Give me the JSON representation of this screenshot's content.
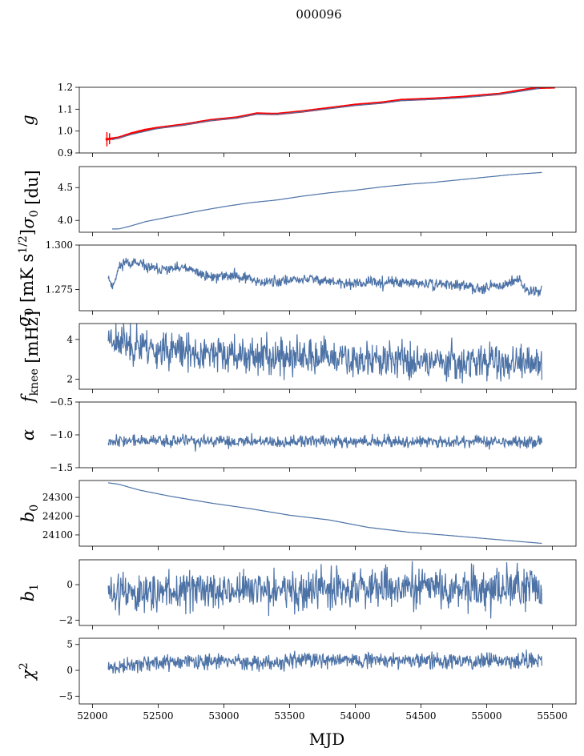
{
  "figure": {
    "title": "000096",
    "xlabel": "MJD"
  },
  "chart_data": [
    {
      "type": "line",
      "ylabel_base": "g",
      "ylabel_sub": "",
      "ylabel_sup": "",
      "xlim": [
        51900,
        55680
      ],
      "ylim": [
        0.9,
        1.2
      ],
      "yticks": [
        0.9,
        1.0,
        1.1,
        1.2
      ],
      "yticklabels": [
        "0.9",
        "1.0",
        "1.1",
        "1.2"
      ],
      "series": [
        {
          "color": "#ff0000",
          "kind": "smooth",
          "points": [
            [
              52100,
              0.962
            ],
            [
              52200,
              0.97
            ],
            [
              52300,
              0.99
            ],
            [
              52400,
              1.005
            ],
            [
              52500,
              1.015
            ],
            [
              52700,
              1.03
            ],
            [
              52900,
              1.05
            ],
            [
              53100,
              1.062
            ],
            [
              53250,
              1.08
            ],
            [
              53400,
              1.078
            ],
            [
              53600,
              1.09
            ],
            [
              53800,
              1.105
            ],
            [
              54000,
              1.12
            ],
            [
              54200,
              1.13
            ],
            [
              54350,
              1.142
            ],
            [
              54600,
              1.148
            ],
            [
              54800,
              1.155
            ],
            [
              55000,
              1.165
            ],
            [
              55100,
              1.17
            ],
            [
              55200,
              1.18
            ],
            [
              55300,
              1.19
            ],
            [
              55400,
              1.198
            ],
            [
              55520,
              1.2
            ]
          ],
          "spikes": [
            [
              52110,
              0.93,
              0.995
            ],
            [
              52130,
              0.94,
              0.99
            ]
          ]
        },
        {
          "color": "#4c72a6",
          "kind": "smooth",
          "points": [
            [
              52150,
              0.96
            ],
            [
              52300,
              0.985
            ],
            [
              52500,
              1.012
            ],
            [
              52700,
              1.028
            ],
            [
              52900,
              1.048
            ],
            [
              53100,
              1.06
            ],
            [
              53250,
              1.077
            ],
            [
              53400,
              1.076
            ],
            [
              53600,
              1.088
            ],
            [
              53800,
              1.102
            ],
            [
              54000,
              1.117
            ],
            [
              54200,
              1.127
            ],
            [
              54350,
              1.139
            ],
            [
              54600,
              1.145
            ],
            [
              54800,
              1.152
            ],
            [
              55000,
              1.162
            ],
            [
              55200,
              1.176
            ],
            [
              55400,
              1.195
            ]
          ]
        }
      ]
    },
    {
      "type": "line",
      "ylabel_base": "σ",
      "ylabel_sub": "0",
      "ylabel_sup": "",
      "ylabel_unit": "[du]",
      "xlim": [
        51900,
        55680
      ],
      "ylim": [
        3.82,
        4.82
      ],
      "yticks": [
        4.0,
        4.5
      ],
      "yticklabels": [
        "4.0",
        "4.5"
      ],
      "series": [
        {
          "color": "#4c72a6",
          "kind": "smooth",
          "points": [
            [
              52150,
              3.87
            ],
            [
              52200,
              3.87
            ],
            [
              52300,
              3.92
            ],
            [
              52400,
              3.98
            ],
            [
              52600,
              4.06
            ],
            [
              52800,
              4.14
            ],
            [
              53000,
              4.21
            ],
            [
              53200,
              4.27
            ],
            [
              53400,
              4.31
            ],
            [
              53600,
              4.37
            ],
            [
              53800,
              4.42
            ],
            [
              54000,
              4.46
            ],
            [
              54200,
              4.51
            ],
            [
              54400,
              4.55
            ],
            [
              54600,
              4.58
            ],
            [
              54800,
              4.62
            ],
            [
              55000,
              4.66
            ],
            [
              55200,
              4.7
            ],
            [
              55420,
              4.73
            ]
          ]
        }
      ]
    },
    {
      "type": "line",
      "ylabel_base": "σ",
      "ylabel_sub": "0",
      "ylabel_unit_pre": "[mK s",
      "ylabel_unit_sup": "1/2",
      "ylabel_unit_post": "]",
      "xlim": [
        51900,
        55680
      ],
      "ylim": [
        1.263,
        1.3
      ],
      "yticks": [
        1.275,
        1.3
      ],
      "yticklabels": [
        "1.275",
        "1.300"
      ],
      "series": [
        {
          "color": "#4c72a6",
          "kind": "noise",
          "seed": 11,
          "noise": 0.0015,
          "points": [
            [
              52120,
              1.283
            ],
            [
              52150,
              1.276
            ],
            [
              52200,
              1.287
            ],
            [
              52250,
              1.291
            ],
            [
              52350,
              1.289
            ],
            [
              52500,
              1.286
            ],
            [
              52700,
              1.287
            ],
            [
              52900,
              1.282
            ],
            [
              53100,
              1.283
            ],
            [
              53300,
              1.279
            ],
            [
              53500,
              1.28
            ],
            [
              53700,
              1.281
            ],
            [
              53900,
              1.278
            ],
            [
              54100,
              1.279
            ],
            [
              54300,
              1.279
            ],
            [
              54500,
              1.278
            ],
            [
              54700,
              1.278
            ],
            [
              54900,
              1.276
            ],
            [
              55100,
              1.277
            ],
            [
              55250,
              1.281
            ],
            [
              55300,
              1.274
            ],
            [
              55420,
              1.275
            ]
          ]
        }
      ]
    },
    {
      "type": "line",
      "ylabel_base": "f",
      "ylabel_sub": "knee",
      "ylabel_unit": "[mHz]",
      "xlim": [
        51900,
        55680
      ],
      "ylim": [
        1.5,
        4.8
      ],
      "yticks": [
        2,
        4
      ],
      "yticklabels": [
        "2",
        "4"
      ],
      "series": [
        {
          "color": "#4c72a6",
          "kind": "noise",
          "seed": 23,
          "noise": 0.45,
          "points": [
            [
              52120,
              4.2
            ],
            [
              52300,
              3.7
            ],
            [
              52600,
              3.4
            ],
            [
              53000,
              3.2
            ],
            [
              53500,
              3.1
            ],
            [
              54000,
              3.0
            ],
            [
              54500,
              2.95
            ],
            [
              55000,
              2.9
            ],
            [
              55420,
              2.7
            ]
          ]
        }
      ]
    },
    {
      "type": "line",
      "ylabel_base": "α",
      "ylabel_sub": "",
      "ylabel_unit": "",
      "xlim": [
        51900,
        55680
      ],
      "ylim": [
        -1.5,
        -0.5
      ],
      "yticks": [
        -1.5,
        -1.0,
        -0.5
      ],
      "yticklabels": [
        "−1.5",
        "−1.0",
        "−0.5"
      ],
      "series": [
        {
          "color": "#4c72a6",
          "kind": "noise",
          "seed": 37,
          "noise": 0.045,
          "points": [
            [
              52120,
              -1.08
            ],
            [
              52500,
              -1.1
            ],
            [
              53000,
              -1.1
            ],
            [
              53500,
              -1.1
            ],
            [
              54000,
              -1.1
            ],
            [
              54500,
              -1.1
            ],
            [
              55000,
              -1.1
            ],
            [
              55420,
              -1.12
            ]
          ]
        }
      ]
    },
    {
      "type": "line",
      "ylabel_base": "b",
      "ylabel_sub": "0",
      "ylabel_unit": "",
      "xlim": [
        51900,
        55680
      ],
      "ylim": [
        24040,
        24390
      ],
      "yticks": [
        24100,
        24200,
        24300
      ],
      "yticklabels": [
        "24100",
        "24200",
        "24300"
      ],
      "series": [
        {
          "color": "#4c72a6",
          "kind": "smooth",
          "points": [
            [
              52120,
              24378
            ],
            [
              52200,
              24370
            ],
            [
              52350,
              24340
            ],
            [
              52600,
              24305
            ],
            [
              52900,
              24270
            ],
            [
              53200,
              24240
            ],
            [
              53500,
              24205
            ],
            [
              53800,
              24180
            ],
            [
              54100,
              24140
            ],
            [
              54400,
              24115
            ],
            [
              54700,
              24098
            ],
            [
              55000,
              24080
            ],
            [
              55200,
              24068
            ],
            [
              55420,
              24055
            ]
          ]
        }
      ]
    },
    {
      "type": "line",
      "ylabel_base": "b",
      "ylabel_sub": "1",
      "ylabel_unit": "",
      "xlim": [
        51900,
        55680
      ],
      "ylim": [
        -2.3,
        1.4
      ],
      "yticks": [
        -2,
        0
      ],
      "yticklabels": [
        "−2",
        "0"
      ],
      "series": [
        {
          "color": "#4c72a6",
          "kind": "noise",
          "seed": 51,
          "noise": 0.55,
          "points": [
            [
              52120,
              -0.5
            ],
            [
              52600,
              -0.4
            ],
            [
              53200,
              -0.35
            ],
            [
              53800,
              -0.3
            ],
            [
              54400,
              -0.2
            ],
            [
              55000,
              -0.25
            ],
            [
              55420,
              -0.3
            ]
          ]
        }
      ]
    },
    {
      "type": "line",
      "ylabel_base": "χ",
      "ylabel_sub": "",
      "ylabel_sup": "2",
      "ylabel_unit": "",
      "xlim": [
        51900,
        55680
      ],
      "ylim": [
        -6.5,
        6.2
      ],
      "yticks": [
        -5,
        0,
        5
      ],
      "yticklabels": [
        "−5",
        "0",
        "5"
      ],
      "series": [
        {
          "color": "#4c72a6",
          "kind": "noise",
          "seed": 71,
          "noise": 0.75,
          "points": [
            [
              52120,
              0.3
            ],
            [
              52400,
              1.4
            ],
            [
              52800,
              1.6
            ],
            [
              53200,
              1.6
            ],
            [
              53600,
              1.9
            ],
            [
              54000,
              2.0
            ],
            [
              54400,
              1.8
            ],
            [
              54800,
              1.9
            ],
            [
              55200,
              1.9
            ],
            [
              55420,
              2.2
            ]
          ]
        }
      ]
    }
  ],
  "xaxis": {
    "ticks": [
      52000,
      52500,
      53000,
      53500,
      54000,
      54500,
      55000,
      55500
    ],
    "ticklabels": [
      "52000",
      "52500",
      "53000",
      "53500",
      "54000",
      "54500",
      "55000",
      "55500"
    ]
  }
}
